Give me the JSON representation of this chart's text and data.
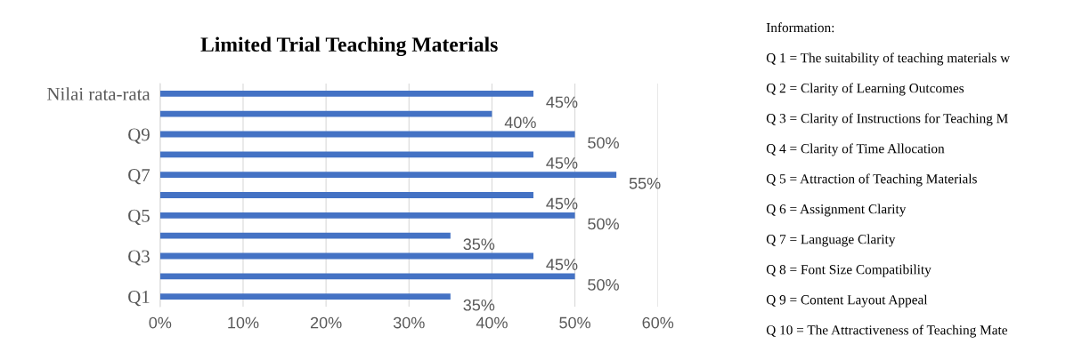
{
  "chart_data": {
    "type": "bar",
    "orientation": "horizontal",
    "title": "Limited Trial Teaching Materials",
    "categories": [
      "Nilai rata-rata",
      null,
      "Q9",
      null,
      "Q7",
      null,
      "Q5",
      null,
      "Q3",
      null,
      "Q1"
    ],
    "values": [
      45,
      40,
      50,
      45,
      55,
      45,
      50,
      35,
      45,
      50,
      35
    ],
    "value_labels": [
      "45%",
      "40%",
      "50%",
      "45%",
      "55%",
      "45%",
      "50%",
      "35%",
      "45%",
      "50%",
      "35%"
    ],
    "color": "#4472c4",
    "xlim": [
      0,
      60
    ],
    "xticks": [
      {
        "value": 0,
        "label": "0%"
      },
      {
        "value": 10,
        "label": "10%"
      },
      {
        "value": 20,
        "label": "20%"
      },
      {
        "value": 30,
        "label": "30%"
      },
      {
        "value": 40,
        "label": "40%"
      },
      {
        "value": 50,
        "label": "50%"
      },
      {
        "value": 60,
        "label": "60%"
      }
    ],
    "grid": "x",
    "legend": false,
    "annotations": [
      "Information:",
      "Q 1 = The suitability of teaching materials w",
      "Q 2 = Clarity of Learning Outcomes",
      "Q 3 = Clarity of Instructions for Teaching M",
      "Q 4 = Clarity of Time Allocation",
      "Q 5 = Attraction of Teaching Materials",
      "Q 6 = Assignment Clarity",
      "Q 7 = Language Clarity",
      "Q 8 = Font Size Compatibility",
      "Q 9 = Content Layout Appeal",
      "Q 10 = The Attractiveness of Teaching Mate"
    ]
  }
}
